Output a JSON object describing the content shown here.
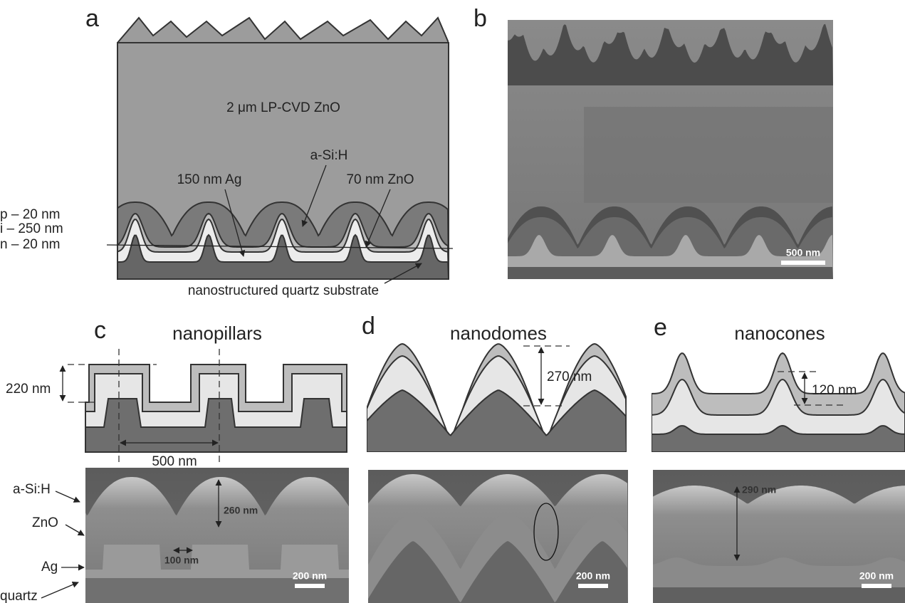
{
  "panel_a": {
    "label": "a",
    "zno_thick": "2 μm LP-CVD ZnO",
    "asih": "a-Si:H",
    "ag": "150 nm Ag",
    "zno": "70 nm ZnO",
    "p_layer": "p – 20 nm",
    "i_layer": "i – 250 nm",
    "n_layer": "n – 20 nm",
    "substrate": "nanostructured quartz substrate"
  },
  "panel_b": {
    "label": "b",
    "scale_bar": "500 nm"
  },
  "panel_c": {
    "label": "c",
    "title": "nanopillars",
    "height": "220 nm",
    "period": "500 nm",
    "layer_labels": [
      "a-Si:H",
      "ZnO",
      "Ag",
      "quartz"
    ],
    "sem_height": "260 nm",
    "gap": "100 nm",
    "scale_bar": "200 nm"
  },
  "panel_d": {
    "label": "d",
    "title": "nanodomes",
    "height": "270 nm",
    "scale_bar": "200 nm"
  },
  "panel_e": {
    "label": "e",
    "title": "nanocones",
    "height": "120 nm",
    "sem_height": "290 nm",
    "scale_bar": "200 nm"
  }
}
